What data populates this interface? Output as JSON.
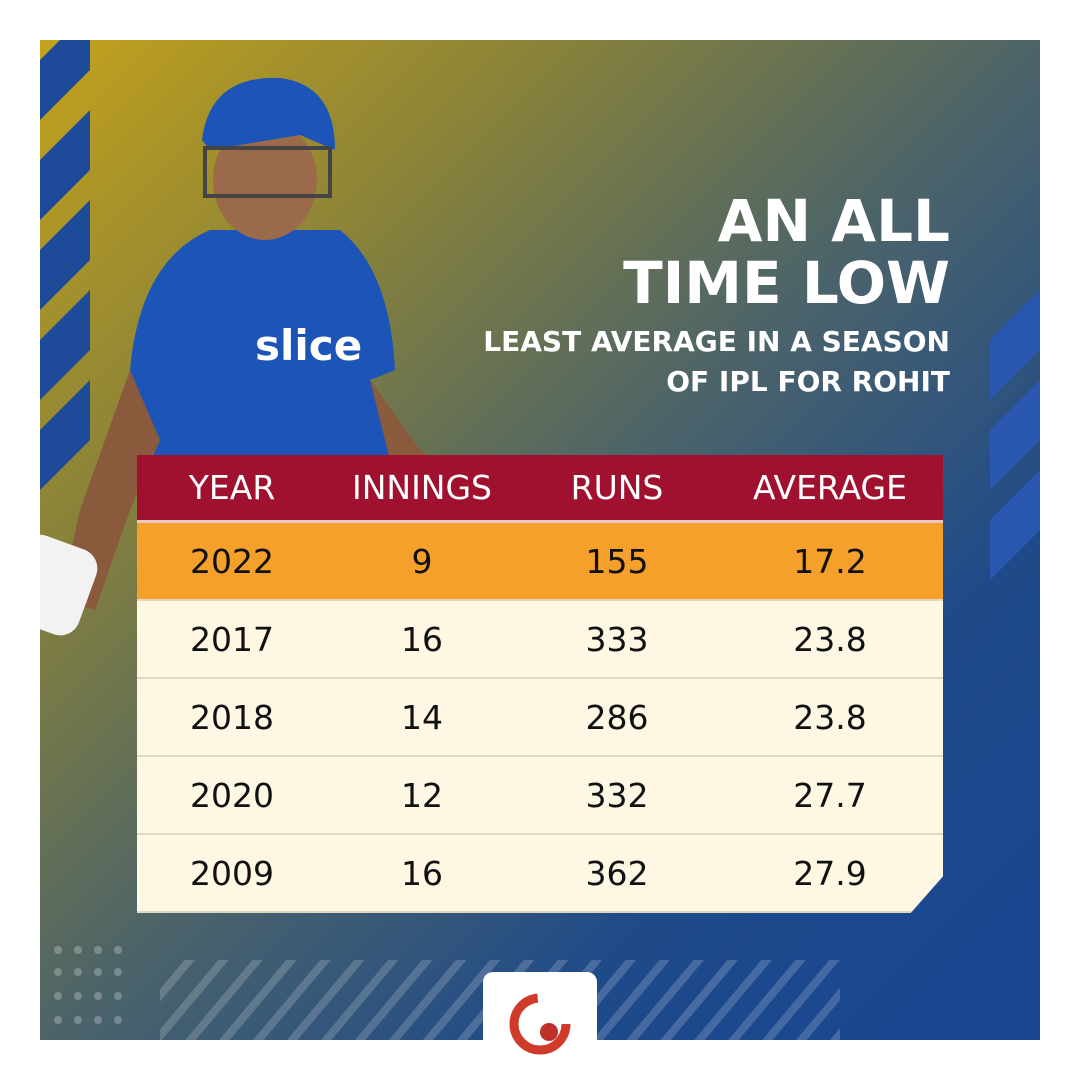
{
  "header": {
    "title": "AN ALL TIME LOW",
    "subtitle": "LEAST AVERAGE IN A SEASON OF IPL FOR ROHIT"
  },
  "table": {
    "columns": [
      "YEAR",
      "INNINGS",
      "RUNS",
      "AVERAGE"
    ],
    "rows": [
      [
        "2022",
        "9",
        "155",
        "17.2"
      ],
      [
        "2017",
        "16",
        "333",
        "23.8"
      ],
      [
        "2018",
        "14",
        "286",
        "23.8"
      ],
      [
        "2020",
        "12",
        "332",
        "27.7"
      ],
      [
        "2009",
        "16",
        "362",
        "27.9"
      ]
    ]
  }
}
